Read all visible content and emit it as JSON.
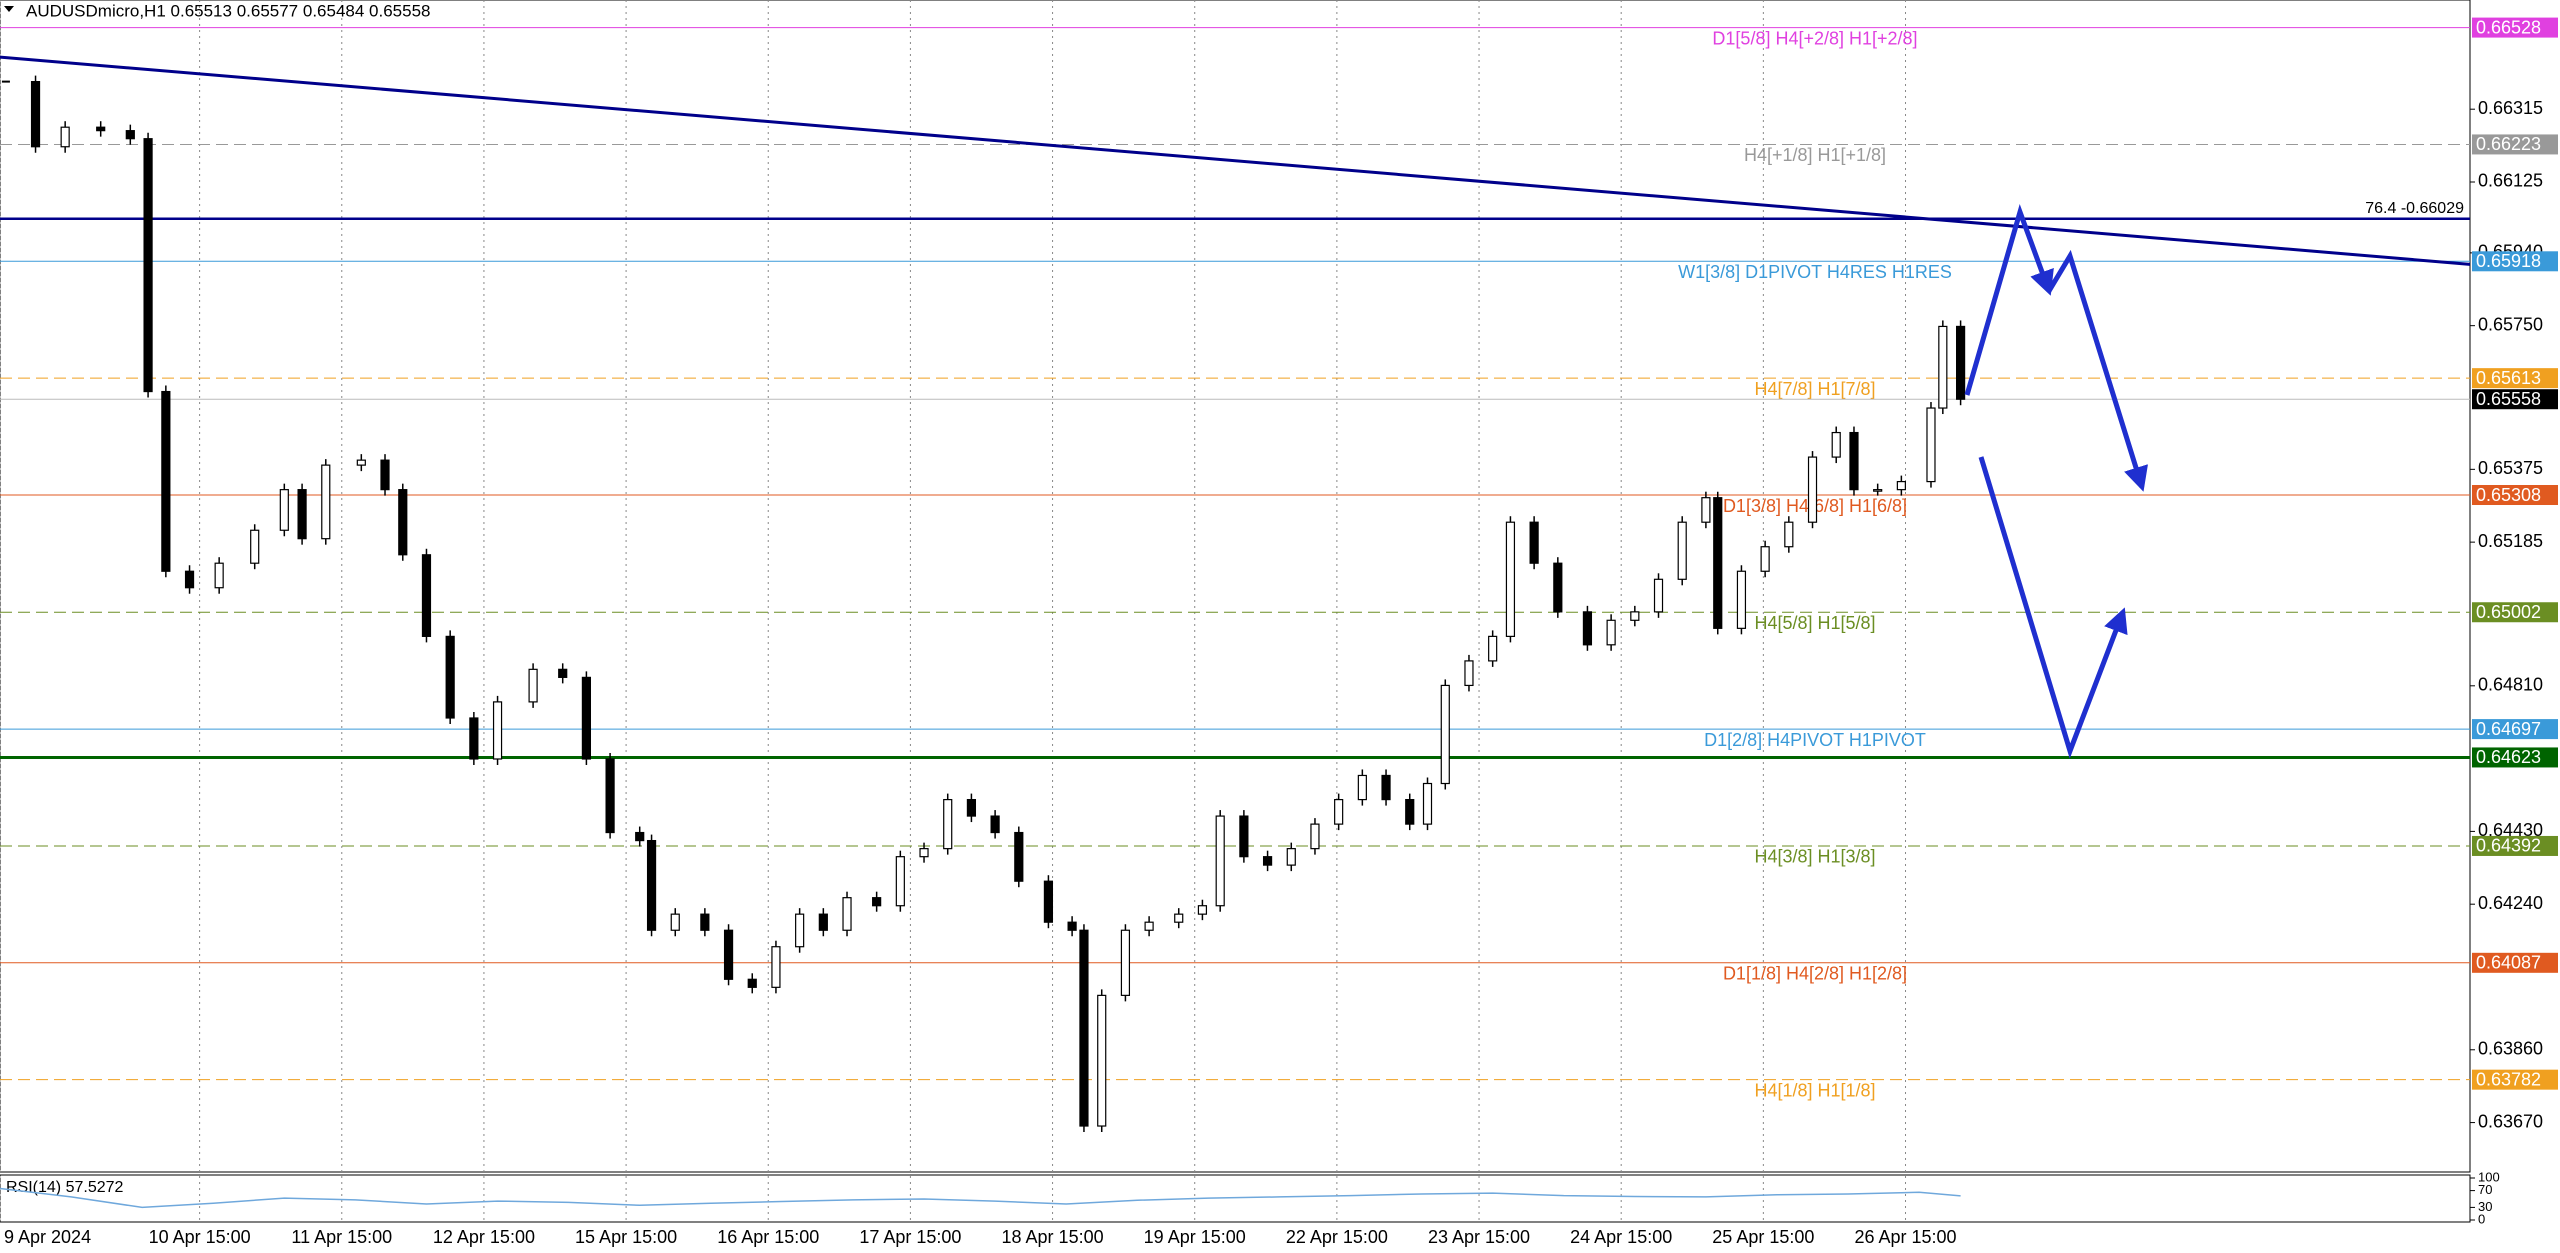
{
  "header": "AUDUSDmicro,H1  0.65513 0.65577 0.65484 0.65558",
  "chart_data": {
    "type": "candlestick",
    "x": [
      1,
      6,
      11,
      17,
      22,
      25,
      28,
      32,
      37,
      43,
      48,
      51,
      55,
      61,
      65,
      68,
      72,
      76,
      80,
      84,
      90,
      95,
      99,
      103,
      108,
      110,
      114,
      119,
      123,
      127,
      131,
      135,
      139,
      143,
      148,
      152,
      156,
      160,
      164,
      168,
      172,
      177,
      181,
      183,
      186,
      190,
      194,
      199,
      203,
      206,
      210,
      214,
      218,
      222,
      226,
      230,
      234,
      238,
      241,
      244,
      248,
      252,
      255,
      259,
      263,
      268,
      272,
      276,
      280,
      284,
      288,
      290,
      294,
      298,
      302,
      306,
      310,
      313,
      317,
      321,
      326,
      328,
      331
    ],
    "values": [
      0.66387,
      0.66217,
      0.66268,
      0.66259,
      0.66238,
      0.65578,
      0.65109,
      0.65066,
      0.6513,
      0.65216,
      0.65322,
      0.65194,
      0.65386,
      0.65399,
      0.65322,
      0.65152,
      0.64939,
      0.64726,
      0.64619,
      0.64768,
      0.64853,
      0.64832,
      0.64619,
      0.64427,
      0.64406,
      0.64172,
      0.64214,
      0.64172,
      0.64044,
      0.64023,
      0.64129,
      0.64214,
      0.64172,
      0.64257,
      0.64236,
      0.64364,
      0.64385,
      0.64513,
      0.6447,
      0.64427,
      0.643,
      0.64193,
      0.64172,
      0.63661,
      0.64002,
      0.64172,
      0.64193,
      0.64214,
      0.64236,
      0.6447,
      0.64364,
      0.64342,
      0.64385,
      0.64449,
      0.64513,
      0.64576,
      0.64513,
      0.64449,
      0.64555,
      0.64811,
      0.64875,
      0.64939,
      0.65237,
      0.6513,
      0.65003,
      0.64917,
      0.64981,
      0.65003,
      0.65088,
      0.65237,
      0.65301,
      0.6496,
      0.65109,
      0.65173,
      0.65237,
      0.65407,
      0.65471,
      0.65322,
      0.65322,
      0.65343,
      0.65535,
      0.65748,
      0.65558
    ],
    "xlim": [
      0,
      417
    ],
    "ylim": [
      0.63541,
      0.666
    ],
    "yticks": [
      0.66315,
      0.66125,
      {
        "value": 0.6594,
        "label": "0.65940"
      },
      {
        "value": 0.6575,
        "label": "0.65750"
      },
      0.65375,
      0.65185,
      {
        "value": 0.6481,
        "label": "0.64810"
      },
      {
        "value": 0.6443,
        "label": "0.64430"
      },
      {
        "value": 0.6424,
        "label": "0.64240"
      },
      {
        "value": 0.6386,
        "label": "0.63860"
      },
      {
        "value": 0.6367,
        "label": "0.63670"
      }
    ],
    "xticks": [
      {
        "value": 0,
        "label": "9 Apr 2024"
      },
      {
        "value": 33.7,
        "label": "10 Apr 15:00"
      },
      {
        "value": 57.7,
        "label": "11 Apr 15:00"
      },
      {
        "value": 81.7,
        "label": "12 Apr 15:00"
      },
      {
        "value": 105.7,
        "label": "15 Apr 15:00"
      },
      {
        "value": 129.7,
        "label": "16 Apr 15:00"
      },
      {
        "value": 153.7,
        "label": "17 Apr 15:00"
      },
      {
        "value": 177.7,
        "label": "18 Apr 15:00"
      },
      {
        "value": 201.7,
        "label": "19 Apr 15:00"
      },
      {
        "value": 225.7,
        "label": "22 Apr 15:00"
      },
      {
        "value": 249.7,
        "label": "23 Apr 15:00"
      },
      {
        "value": 273.7,
        "label": "24 Apr 15:00"
      },
      {
        "value": 297.7,
        "label": "25 Apr 15:00"
      },
      {
        "value": 321.7,
        "label": "26 Apr 15:00"
      }
    ],
    "levels": [
      {
        "value": 0.66528,
        "label": "D1[5/8] H4[+2/8] H1[+2/8]",
        "color": "#e040e0",
        "style": "solid"
      },
      {
        "value": 0.66223,
        "label": "H4[+1/8] H1[+1/8]",
        "color": "#999999",
        "style": "dashed"
      },
      {
        "value": 0.65918,
        "label": "W1[3/8] D1PIVOT H4RES H1RES",
        "color": "#3a9ad9",
        "style": "solid"
      },
      {
        "value": 0.65613,
        "label": "H4[7/8] H1[7/8]",
        "color": "#f0a020",
        "style": "dashed"
      },
      {
        "value": 0.65558,
        "color": "#000000",
        "style": "solid"
      },
      {
        "value": 0.65308,
        "label": "D1[3/8] H4[6/8] H1[6/8]",
        "color": "#e05a20",
        "style": "solid"
      },
      {
        "value": 0.65002,
        "label": "H4[5/8] H1[5/8]",
        "color": "#6b8e23",
        "style": "dashed"
      },
      {
        "value": 0.64697,
        "label": "D1[2/8] H4PIVOT H1PIVOT",
        "color": "#3a9ad9",
        "style": "solid"
      },
      {
        "value": 0.64623,
        "color": "#006400",
        "style": "thick"
      },
      {
        "value": 0.64392,
        "label": "H4[3/8] H1[3/8]",
        "color": "#6b8e23",
        "style": "dashed"
      },
      {
        "value": 0.64087,
        "label": "D1[1/8] H4[2/8] H1[2/8]",
        "color": "#e05a20",
        "style": "solid"
      },
      {
        "value": 0.63782,
        "label": "H4[1/8] H1[1/8]",
        "color": "#f0a020",
        "style": "dashed"
      }
    ],
    "trendline": {
      "x": [
        0,
        417
      ],
      "values": [
        0.66451,
        0.6591
      ],
      "color": "#00008b"
    },
    "fibo": {
      "value": 0.66029,
      "label": "76.4 -0.66029",
      "color": "#00008b"
    },
    "rsi": {
      "title": "RSI(14) 57.5272",
      "color": "#6fa8dc",
      "ylim": [
        0,
        100
      ],
      "yticks": [
        0,
        30,
        70,
        100
      ],
      "x": [
        0,
        12,
        24,
        36,
        48,
        60,
        72,
        84,
        96,
        108,
        120,
        132,
        144,
        156,
        168,
        180,
        192,
        204,
        216,
        228,
        240,
        252,
        264,
        276,
        288,
        300,
        312,
        324,
        331
      ],
      "values": [
        75,
        55,
        30,
        40,
        52,
        48,
        38,
        45,
        42,
        35,
        40,
        44,
        48,
        50,
        45,
        38,
        47,
        52,
        55,
        58,
        62,
        64,
        58,
        56,
        55,
        60,
        62,
        66,
        57.5272
      ]
    }
  }
}
